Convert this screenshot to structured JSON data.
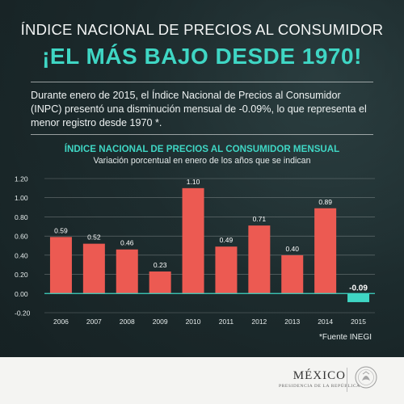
{
  "header": {
    "top": "ÍNDICE NACIONAL DE PRECIOS AL CONSUMIDOR",
    "main": "¡EL MÁS BAJO DESDE 1970!"
  },
  "intro": "Durante enero de 2015, el Índice Nacional de Precios al Consumidor (INPC) presentó una disminución mensual de -0.09%, lo que representa el menor registro desde 1970 *.",
  "chart_data": {
    "type": "bar",
    "title": "ÍNDICE NACIONAL DE PRECIOS AL CONSUMIDOR MENSUAL",
    "subtitle": "Variación porcentual en enero de los años que se indican",
    "categories": [
      "2006",
      "2007",
      "2008",
      "2009",
      "2010",
      "2011",
      "2012",
      "2013",
      "2014",
      "2015"
    ],
    "values": [
      0.59,
      0.52,
      0.46,
      0.23,
      1.1,
      0.49,
      0.71,
      0.4,
      0.89,
      -0.09
    ],
    "labels": [
      "0.59",
      "0.52",
      "0.46",
      "0.23",
      "1.10",
      "0.49",
      "0.71",
      "0.40",
      "0.89",
      "-0.09"
    ],
    "yticks": [
      "1.20",
      "1.00",
      "0.80",
      "0.60",
      "0.40",
      "0.20",
      "0.00",
      "-0.20"
    ],
    "ylim": [
      -0.2,
      1.2
    ],
    "grid": true,
    "colors": {
      "positive": "#ec5a52",
      "negative": "#3fd6c4",
      "axis": "#3fd6c4"
    }
  },
  "source": "*Fuente INEGI",
  "footer": {
    "logo_main": "MÉXICO",
    "logo_sub": "PRESIDENCIA DE LA REPÚBLICA"
  }
}
